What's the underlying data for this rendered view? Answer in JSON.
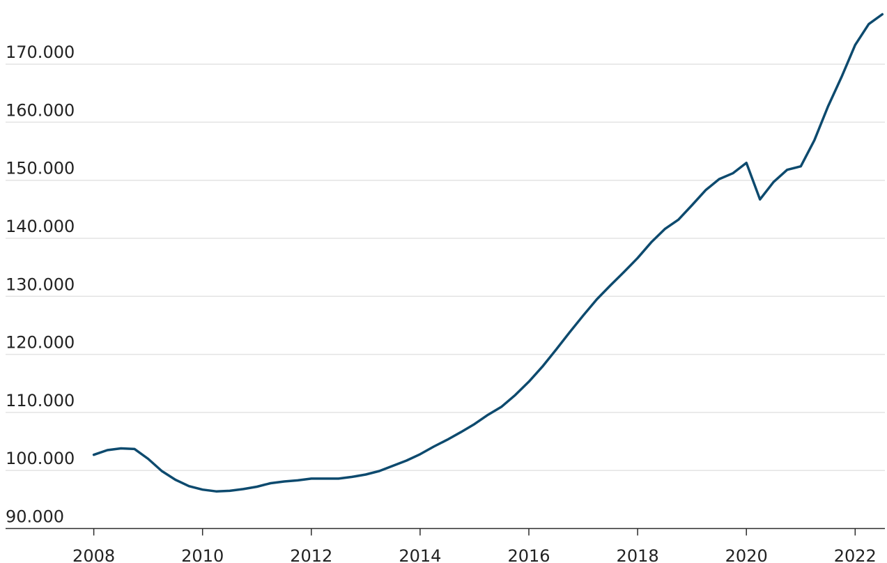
{
  "chart_data": {
    "type": "line",
    "title": "",
    "xlabel": "",
    "ylabel": "",
    "xlim": [
      2008,
      2022.6
    ],
    "ylim": [
      89000,
      179000
    ],
    "grid": true,
    "legend": "none",
    "colors": {
      "line": "#0d4a6e",
      "grid": "#e3e3e3",
      "axis": "#2b2b2b",
      "text": "#222222"
    },
    "y_ticks": [
      {
        "value": 90000,
        "label": "90.000"
      },
      {
        "value": 100000,
        "label": "100.000"
      },
      {
        "value": 110000,
        "label": "110.000"
      },
      {
        "value": 120000,
        "label": "120.000"
      },
      {
        "value": 130000,
        "label": "130.000"
      },
      {
        "value": 140000,
        "label": "140.000"
      },
      {
        "value": 150000,
        "label": "150.000"
      },
      {
        "value": 160000,
        "label": "160.000"
      },
      {
        "value": 170000,
        "label": "170.000"
      }
    ],
    "x_ticks": [
      {
        "value": 2008,
        "label": "2008"
      },
      {
        "value": 2010,
        "label": "2010"
      },
      {
        "value": 2012,
        "label": "2012"
      },
      {
        "value": 2014,
        "label": "2014"
      },
      {
        "value": 2016,
        "label": "2016"
      },
      {
        "value": 2018,
        "label": "2018"
      },
      {
        "value": 2020,
        "label": "2020"
      },
      {
        "value": 2022,
        "label": "2022"
      }
    ],
    "series": [
      {
        "points": [
          [
            2008.0,
            102700
          ],
          [
            2008.25,
            103500
          ],
          [
            2008.5,
            103800
          ],
          [
            2008.75,
            103700
          ],
          [
            2009.0,
            102000
          ],
          [
            2009.25,
            99900
          ],
          [
            2009.5,
            98400
          ],
          [
            2009.75,
            97300
          ],
          [
            2010.0,
            96700
          ],
          [
            2010.25,
            96400
          ],
          [
            2010.5,
            96500
          ],
          [
            2010.75,
            96800
          ],
          [
            2011.0,
            97200
          ],
          [
            2011.25,
            97800
          ],
          [
            2011.5,
            98100
          ],
          [
            2011.75,
            98300
          ],
          [
            2012.0,
            98600
          ],
          [
            2012.25,
            98600
          ],
          [
            2012.5,
            98600
          ],
          [
            2012.75,
            98900
          ],
          [
            2013.0,
            99300
          ],
          [
            2013.25,
            99900
          ],
          [
            2013.5,
            100800
          ],
          [
            2013.75,
            101700
          ],
          [
            2014.0,
            102800
          ],
          [
            2014.25,
            104100
          ],
          [
            2014.5,
            105300
          ],
          [
            2014.75,
            106600
          ],
          [
            2015.0,
            108000
          ],
          [
            2015.25,
            109600
          ],
          [
            2015.5,
            111000
          ],
          [
            2015.75,
            113000
          ],
          [
            2016.0,
            115300
          ],
          [
            2016.25,
            117900
          ],
          [
            2016.5,
            120800
          ],
          [
            2016.75,
            123800
          ],
          [
            2017.0,
            126700
          ],
          [
            2017.25,
            129500
          ],
          [
            2017.5,
            131900
          ],
          [
            2017.75,
            134200
          ],
          [
            2018.0,
            136600
          ],
          [
            2018.25,
            139300
          ],
          [
            2018.5,
            141600
          ],
          [
            2018.75,
            143200
          ],
          [
            2019.0,
            145700
          ],
          [
            2019.25,
            148300
          ],
          [
            2019.5,
            150200
          ],
          [
            2019.75,
            151200
          ],
          [
            2020.0,
            153000
          ],
          [
            2020.25,
            146700
          ],
          [
            2020.5,
            149700
          ],
          [
            2020.75,
            151800
          ],
          [
            2021.0,
            152400
          ],
          [
            2021.25,
            156900
          ],
          [
            2021.5,
            162700
          ],
          [
            2021.75,
            167800
          ],
          [
            2022.0,
            173300
          ],
          [
            2022.25,
            176900
          ],
          [
            2022.5,
            178600
          ]
        ]
      }
    ]
  }
}
